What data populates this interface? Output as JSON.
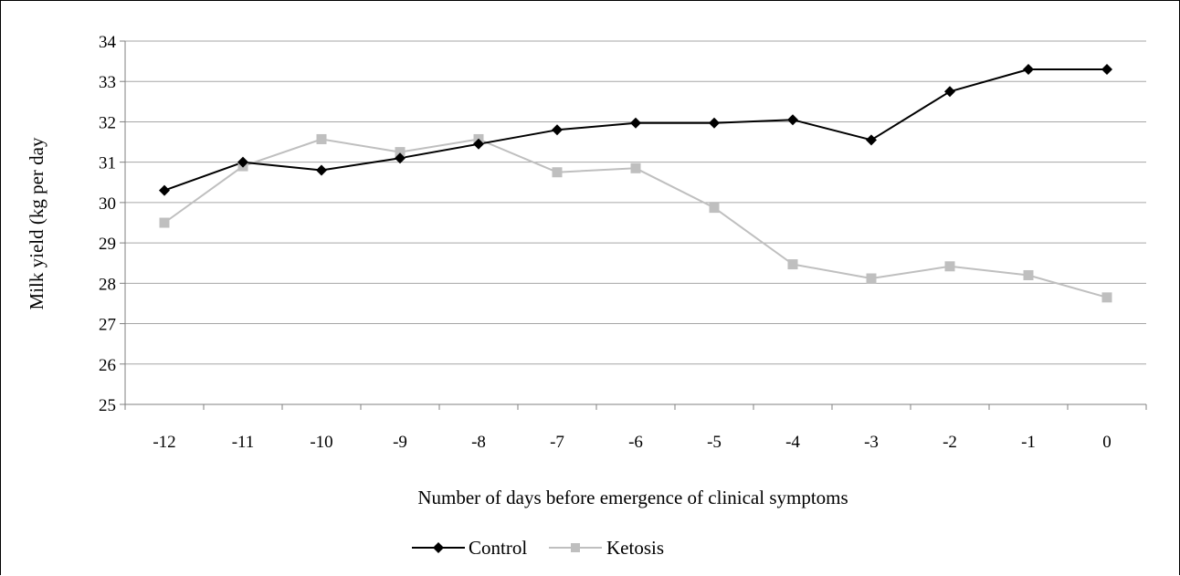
{
  "chart_data": {
    "type": "line",
    "title": "",
    "xlabel": "Number of days before emergence of clinical symptoms",
    "ylabel": "Milk yield (kg per day",
    "x": [
      "-12",
      "-11",
      "-10",
      "-9",
      "-8",
      "-7",
      "-6",
      "-5",
      "-4",
      "-3",
      "-2",
      "-1",
      "0"
    ],
    "yticks": [
      "25",
      "26",
      "27",
      "28",
      "29",
      "30",
      "31",
      "32",
      "33",
      "34"
    ],
    "ylim": [
      25,
      34
    ],
    "grid": "horizontal",
    "legend_position": "bottom",
    "series": [
      {
        "name": "Control",
        "marker": "diamond",
        "color": "#000000",
        "values": [
          30.3,
          31.0,
          30.8,
          31.1,
          31.45,
          31.8,
          31.97,
          31.97,
          32.05,
          31.55,
          32.75,
          33.3,
          33.3
        ]
      },
      {
        "name": "Ketosis",
        "marker": "square",
        "color": "#bfbfbf",
        "values": [
          29.5,
          30.9,
          31.57,
          31.25,
          31.57,
          30.75,
          30.85,
          29.87,
          28.47,
          28.12,
          28.42,
          28.2,
          27.65
        ]
      }
    ]
  }
}
